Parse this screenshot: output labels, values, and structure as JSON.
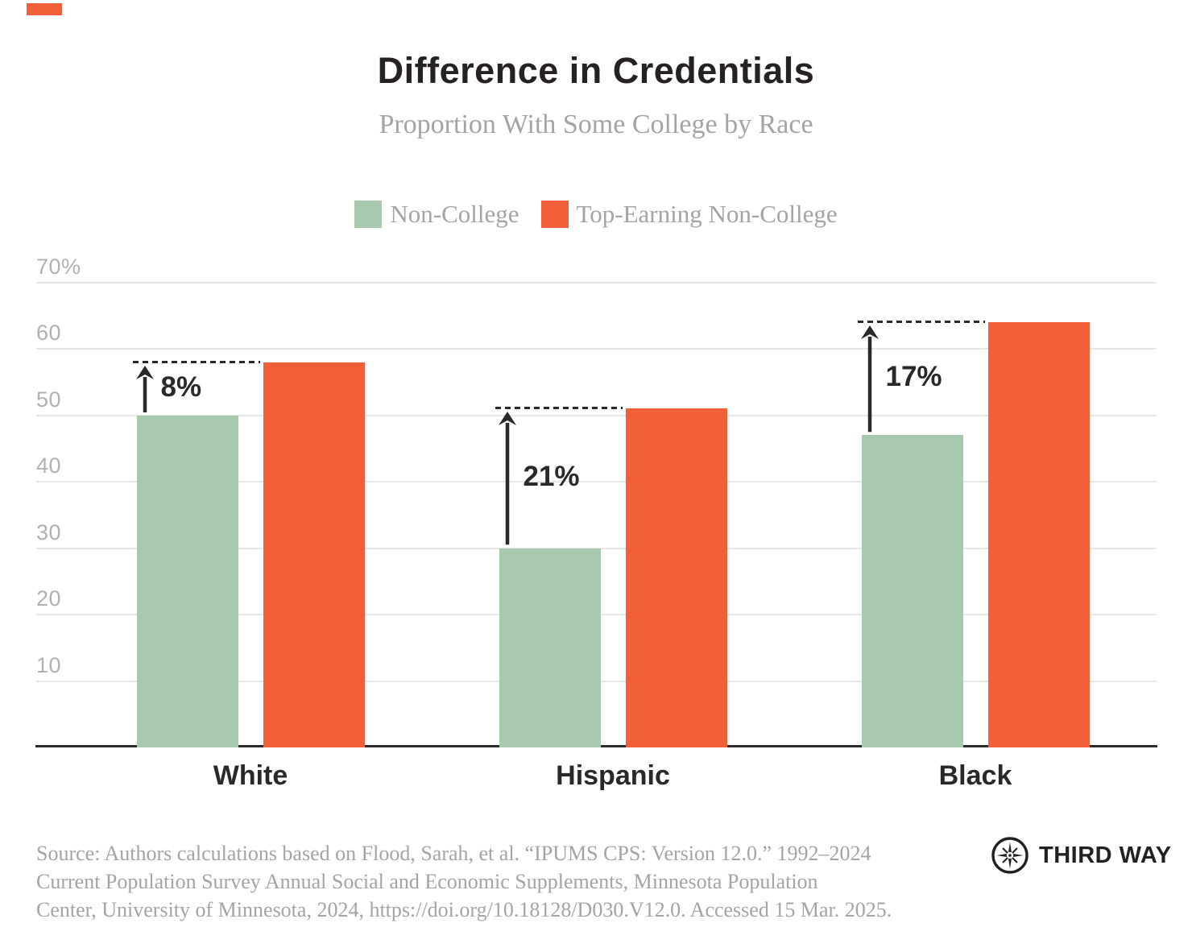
{
  "accent_color": "#F2603A",
  "title": "Difference in Credentials",
  "subtitle": "Proportion With Some College by Race",
  "legend": [
    {
      "label": "Non-College",
      "color": "#A7CAAF"
    },
    {
      "label": "Top-Earning Non-College",
      "color": "#F2603A"
    }
  ],
  "chart_data": {
    "type": "bar",
    "categories": [
      "White",
      "Hispanic",
      "Black"
    ],
    "series": [
      {
        "name": "Non-College",
        "color": "#A7CAAF",
        "values": [
          50,
          30,
          47
        ]
      },
      {
        "name": "Top-Earning Non-College",
        "color": "#F2603A",
        "values": [
          58,
          51,
          64
        ]
      }
    ],
    "diff_labels": [
      "8%",
      "21%",
      "17%"
    ],
    "title": "Difference in Credentials",
    "subtitle": "Proportion With Some College by Race",
    "xlabel": "",
    "ylabel": "",
    "ylim": [
      0,
      70
    ],
    "yticks": [
      10,
      20,
      30,
      40,
      50,
      60,
      70
    ],
    "ytick_labels": [
      "10",
      "20",
      "30",
      "40",
      "50",
      "60",
      "70%"
    ],
    "grid": true,
    "legend_position": "top",
    "annotation_style": "dashed line at top bar level with upward arrow from lower bar and percent-difference label"
  },
  "source": {
    "lines": [
      "Source: Authors calculations based on Flood, Sarah, et al. “IPUMS CPS: Version 12.0.” 1992–2024",
      "Current Population Survey Annual Social and Economic Supplements, Minnesota Population",
      "Center, University of Minnesota, 2024, https://doi.org/10.18128/D030.V12.0. Accessed 15 Mar. 2025."
    ]
  },
  "logo": {
    "text": "THIRD WAY"
  }
}
